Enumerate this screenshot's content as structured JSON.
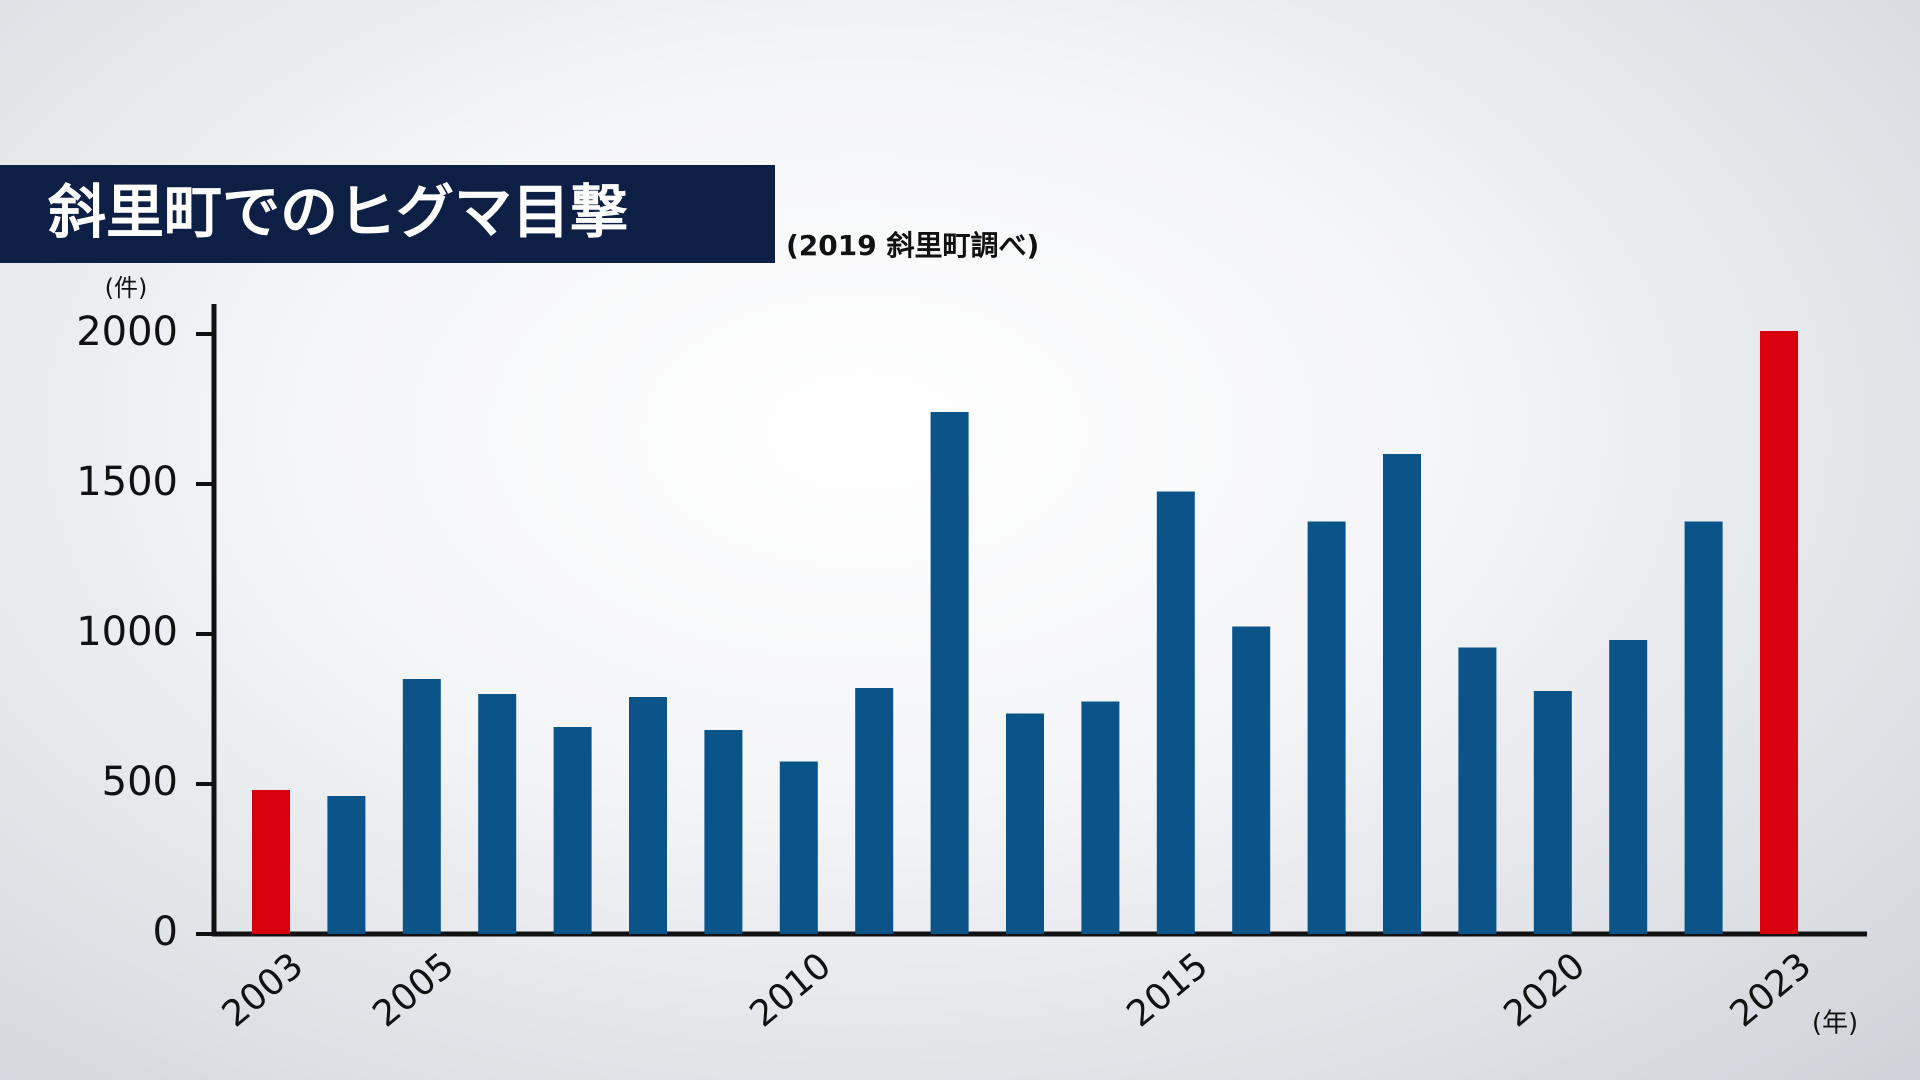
{
  "chart_data": {
    "type": "bar",
    "title": "斜里町でのヒグマ目撃",
    "subtitle": "(2019 斜里町調べ)",
    "y_axis_label": "(件)",
    "x_axis_label": "(年)",
    "categories": [
      "2003",
      null,
      "2005",
      null,
      null,
      null,
      null,
      "2010",
      null,
      null,
      null,
      null,
      "2015",
      null,
      null,
      null,
      null,
      "2020",
      null,
      null,
      "2023"
    ],
    "values": [
      480,
      460,
      850,
      800,
      690,
      790,
      680,
      575,
      820,
      1740,
      735,
      775,
      1475,
      1025,
      1375,
      1600,
      955,
      810,
      980,
      1375,
      2010
    ],
    "colors": [
      "#d8000c",
      "#0b5489",
      "#0b5489",
      "#0b5489",
      "#0b5489",
      "#0b5489",
      "#0b5489",
      "#0b5489",
      "#0b5489",
      "#0b5489",
      "#0b5489",
      "#0b5489",
      "#0b5489",
      "#0b5489",
      "#0b5489",
      "#0b5489",
      "#0b5489",
      "#0b5489",
      "#0b5489",
      "#0b5489",
      "#d8000c"
    ],
    "ylim": [
      0,
      2000
    ],
    "yticks": [
      0,
      500,
      1000,
      1500,
      2000
    ]
  }
}
